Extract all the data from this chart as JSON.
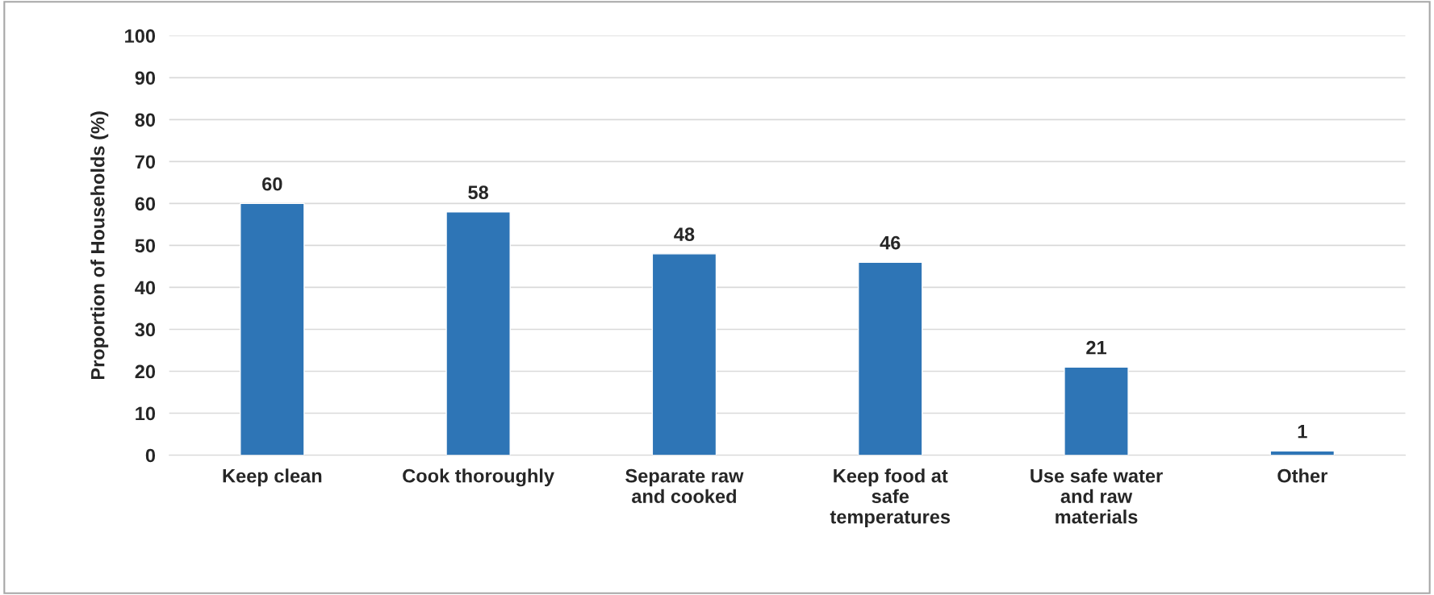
{
  "chart_data": {
    "type": "bar",
    "ylabel": "Proportion of Households (%)",
    "categories": [
      "Keep clean",
      "Cook thoroughly",
      "Separate raw\nand cooked",
      "Keep food at\nsafe\ntemperatures",
      "Use safe water\nand raw\nmaterials",
      "Other"
    ],
    "values": [
      60,
      58,
      48,
      46,
      21,
      1
    ],
    "color": "#2e75b6",
    "ylim": [
      0,
      100
    ],
    "yticks": [
      0,
      10,
      20,
      30,
      40,
      50,
      60,
      70,
      80,
      90,
      100
    ],
    "grid": "y",
    "data_labels": true
  }
}
